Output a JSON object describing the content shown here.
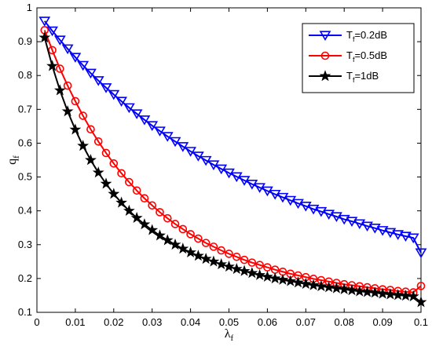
{
  "chart_data": {
    "type": "line",
    "title": "",
    "xlabel": "λ",
    "xlabel_sub": "f",
    "ylabel": "q",
    "ylabel_sub": "f",
    "xlim": [
      0,
      0.1
    ],
    "ylim": [
      0.1,
      1
    ],
    "xticks": [
      0,
      0.01,
      0.02,
      0.03,
      0.04,
      0.05,
      0.06,
      0.07,
      0.08,
      0.09,
      0.1
    ],
    "yticks": [
      0.1,
      0.2,
      0.3,
      0.4,
      0.5,
      0.6,
      0.7,
      0.8,
      0.9,
      1
    ],
    "grid": false,
    "legend_position": "top-right",
    "x": [
      0.002,
      0.004,
      0.006,
      0.008,
      0.01,
      0.012,
      0.014,
      0.016,
      0.018,
      0.02,
      0.022,
      0.024,
      0.026,
      0.028,
      0.03,
      0.032,
      0.034,
      0.036,
      0.038,
      0.04,
      0.042,
      0.044,
      0.046,
      0.048,
      0.05,
      0.052,
      0.054,
      0.056,
      0.058,
      0.06,
      0.062,
      0.064,
      0.066,
      0.068,
      0.07,
      0.072,
      0.074,
      0.076,
      0.078,
      0.08,
      0.082,
      0.084,
      0.086,
      0.088,
      0.09,
      0.092,
      0.094,
      0.096,
      0.098,
      0.1
    ],
    "series": [
      {
        "name": "T=0.2dB",
        "label_main": "T",
        "label_sub": "f",
        "label_rest": "=0.2dB",
        "color": "#0000ff",
        "marker": "triangle-down",
        "values": [
          0.961,
          0.932,
          0.905,
          0.879,
          0.854,
          0.83,
          0.807,
          0.785,
          0.764,
          0.744,
          0.724,
          0.705,
          0.687,
          0.669,
          0.652,
          0.636,
          0.62,
          0.605,
          0.59,
          0.576,
          0.562,
          0.549,
          0.536,
          0.524,
          0.512,
          0.501,
          0.49,
          0.479,
          0.469,
          0.459,
          0.449,
          0.44,
          0.431,
          0.422,
          0.414,
          0.405,
          0.398,
          0.39,
          0.383,
          0.375,
          0.369,
          0.362,
          0.355,
          0.349,
          0.342,
          0.336,
          0.33,
          0.325,
          0.32,
          0.276
        ]
      },
      {
        "name": "T=0.5dB",
        "label_main": "T",
        "label_sub": "f",
        "label_rest": "=0.5dB",
        "color": "#ff0000",
        "marker": "circle",
        "values": [
          0.934,
          0.875,
          0.82,
          0.77,
          0.724,
          0.681,
          0.641,
          0.605,
          0.571,
          0.54,
          0.511,
          0.485,
          0.46,
          0.437,
          0.416,
          0.396,
          0.378,
          0.361,
          0.346,
          0.331,
          0.318,
          0.305,
          0.294,
          0.283,
          0.273,
          0.264,
          0.255,
          0.247,
          0.24,
          0.233,
          0.226,
          0.22,
          0.214,
          0.209,
          0.204,
          0.199,
          0.195,
          0.191,
          0.187,
          0.183,
          0.18,
          0.177,
          0.174,
          0.171,
          0.168,
          0.166,
          0.163,
          0.161,
          0.159,
          0.178
        ]
      },
      {
        "name": "T=1dB",
        "label_main": "T",
        "label_sub": "f",
        "label_rest": "=1dB",
        "color": "#000000",
        "marker": "star",
        "values": [
          0.912,
          0.828,
          0.756,
          0.694,
          0.64,
          0.592,
          0.55,
          0.513,
          0.48,
          0.45,
          0.424,
          0.4,
          0.379,
          0.36,
          0.343,
          0.327,
          0.313,
          0.3,
          0.288,
          0.277,
          0.267,
          0.258,
          0.25,
          0.242,
          0.235,
          0.228,
          0.222,
          0.216,
          0.21,
          0.205,
          0.2,
          0.196,
          0.192,
          0.188,
          0.184,
          0.18,
          0.177,
          0.174,
          0.171,
          0.168,
          0.165,
          0.162,
          0.16,
          0.158,
          0.155,
          0.153,
          0.151,
          0.149,
          0.147,
          0.13
        ]
      }
    ]
  }
}
